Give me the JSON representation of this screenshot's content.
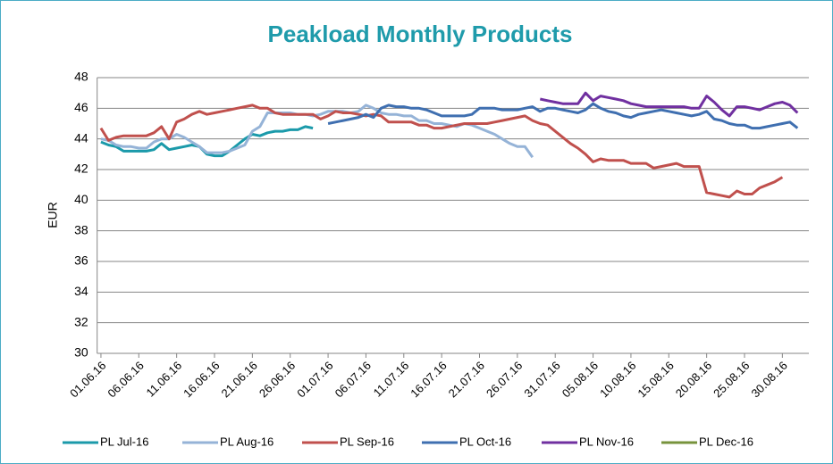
{
  "chart_data": {
    "type": "line",
    "title": "Peakload Monthly Products",
    "y_label": "EUR",
    "categories": [
      "01.06.16",
      null,
      null,
      null,
      null,
      "06.06.16",
      null,
      null,
      null,
      null,
      "11.06.16",
      null,
      null,
      null,
      null,
      "16.06.16",
      null,
      null,
      null,
      null,
      "21.06.16",
      null,
      null,
      null,
      null,
      "26.06.16",
      null,
      null,
      null,
      null,
      "01.07.16",
      null,
      null,
      null,
      null,
      "06.07.16",
      null,
      null,
      null,
      null,
      "11.07.16",
      null,
      null,
      null,
      null,
      "16.07.16",
      null,
      null,
      null,
      null,
      "21.07.16",
      null,
      null,
      null,
      null,
      "26.07.16",
      null,
      null,
      null,
      null,
      "31.07.16",
      null,
      null,
      null,
      null,
      "05.08.16",
      null,
      null,
      null,
      null,
      "10.08.16",
      null,
      null,
      null,
      null,
      "15.08.16",
      null,
      null,
      null,
      null,
      "20.08.16",
      null,
      null,
      null,
      null,
      "25.08.16",
      null,
      null,
      null,
      null,
      "30.08.16",
      null,
      null,
      null
    ],
    "ylim": [
      30,
      48
    ],
    "yticks": [
      30,
      32,
      34,
      36,
      38,
      40,
      42,
      44,
      46,
      48
    ],
    "grid": true,
    "legend": "bottom",
    "series": [
      {
        "name": "PL Jul-16",
        "color": "#1b9aaa",
        "values": [
          43.8,
          43.6,
          43.5,
          43.2,
          43.2,
          43.2,
          43.2,
          43.3,
          43.7,
          43.3,
          43.4,
          43.5,
          43.6,
          43.5,
          43.0,
          42.9,
          42.9,
          43.2,
          43.6,
          44.0,
          44.3,
          44.2,
          44.4,
          44.5,
          44.5,
          44.6,
          44.6,
          44.8,
          44.7,
          null,
          null,
          null,
          null,
          null,
          null,
          null,
          null,
          null,
          null,
          null,
          null,
          null,
          null,
          null,
          null,
          null,
          null,
          null,
          null,
          null,
          null,
          null,
          null,
          null,
          null,
          null,
          null,
          null,
          null,
          null,
          null,
          null,
          null,
          null,
          null,
          null,
          null,
          null,
          null,
          null,
          null,
          null,
          null,
          null,
          null,
          null,
          null,
          null,
          null,
          null,
          null,
          null,
          null,
          null,
          null,
          null,
          null,
          null,
          null,
          null,
          null,
          null,
          null,
          null
        ]
      },
      {
        "name": "PL Aug-16",
        "color": "#95b3d7",
        "values": [
          44.0,
          43.9,
          43.6,
          43.5,
          43.5,
          43.4,
          43.4,
          43.8,
          44.0,
          44.0,
          44.3,
          44.1,
          43.8,
          43.5,
          43.1,
          43.1,
          43.1,
          43.2,
          43.4,
          43.6,
          44.5,
          44.8,
          45.7,
          45.7,
          45.7,
          45.7,
          45.6,
          45.6,
          45.5,
          45.6,
          45.8,
          45.8,
          45.8,
          45.7,
          45.8,
          46.2,
          46.0,
          45.7,
          45.6,
          45.6,
          45.5,
          45.5,
          45.2,
          45.2,
          45.0,
          45.0,
          44.9,
          44.8,
          45.0,
          44.9,
          44.7,
          44.5,
          44.3,
          44.0,
          43.7,
          43.5,
          43.5,
          42.8,
          null,
          null,
          null,
          null,
          null,
          null,
          null,
          null,
          null,
          null,
          null,
          null,
          null,
          null,
          null,
          null,
          null,
          null,
          null,
          null,
          null,
          null,
          null,
          null,
          null,
          null,
          null,
          null,
          null,
          null,
          null,
          null,
          null,
          null,
          null,
          null
        ]
      },
      {
        "name": "PL Sep-16",
        "color": "#c0504d",
        "values": [
          44.7,
          43.9,
          44.1,
          44.2,
          44.2,
          44.2,
          44.2,
          44.4,
          44.8,
          44.0,
          45.1,
          45.3,
          45.6,
          45.8,
          45.6,
          45.7,
          45.8,
          45.9,
          46.0,
          46.1,
          46.2,
          46.0,
          46.0,
          45.7,
          45.6,
          45.6,
          45.6,
          45.6,
          45.6,
          45.3,
          45.5,
          45.8,
          45.7,
          45.7,
          45.6,
          45.5,
          45.6,
          45.5,
          45.1,
          45.1,
          45.1,
          45.1,
          44.9,
          44.9,
          44.7,
          44.7,
          44.8,
          44.9,
          45.0,
          45.0,
          45.0,
          45.0,
          45.1,
          45.2,
          45.3,
          45.4,
          45.5,
          45.2,
          45.0,
          44.9,
          44.5,
          44.1,
          43.7,
          43.4,
          43.0,
          42.5,
          42.7,
          42.6,
          42.6,
          42.6,
          42.4,
          42.4,
          42.4,
          42.1,
          42.2,
          42.3,
          42.4,
          42.2,
          42.2,
          42.2,
          40.5,
          40.4,
          40.3,
          40.2,
          40.6,
          40.4,
          40.4,
          40.8,
          41.0,
          41.2,
          41.5,
          null,
          null,
          null
        ]
      },
      {
        "name": "PL Oct-16",
        "color": "#3f6fb0",
        "values": [
          null,
          null,
          null,
          null,
          null,
          null,
          null,
          null,
          null,
          null,
          null,
          null,
          null,
          null,
          null,
          null,
          null,
          null,
          null,
          null,
          null,
          null,
          null,
          null,
          null,
          null,
          null,
          null,
          null,
          null,
          45.0,
          45.1,
          45.2,
          45.3,
          45.4,
          45.6,
          45.4,
          46.0,
          46.2,
          46.1,
          46.1,
          46.0,
          46.0,
          45.9,
          45.7,
          45.5,
          45.5,
          45.5,
          45.5,
          45.6,
          46.0,
          46.0,
          46.0,
          45.9,
          45.9,
          45.9,
          46.0,
          46.1,
          45.8,
          46.0,
          46.0,
          45.9,
          45.8,
          45.7,
          45.9,
          46.3,
          46.0,
          45.8,
          45.7,
          45.5,
          45.4,
          45.6,
          45.7,
          45.8,
          45.9,
          45.8,
          45.7,
          45.6,
          45.5,
          45.6,
          45.8,
          45.3,
          45.2,
          45.0,
          44.9,
          44.9,
          44.7,
          44.7,
          44.8,
          44.9,
          45.0,
          45.1,
          44.7,
          null
        ]
      },
      {
        "name": "PL Nov-16",
        "color": "#7030a0",
        "values": [
          null,
          null,
          null,
          null,
          null,
          null,
          null,
          null,
          null,
          null,
          null,
          null,
          null,
          null,
          null,
          null,
          null,
          null,
          null,
          null,
          null,
          null,
          null,
          null,
          null,
          null,
          null,
          null,
          null,
          null,
          null,
          null,
          null,
          null,
          null,
          null,
          null,
          null,
          null,
          null,
          null,
          null,
          null,
          null,
          null,
          null,
          null,
          null,
          null,
          null,
          null,
          null,
          null,
          null,
          null,
          null,
          null,
          null,
          46.6,
          46.5,
          46.4,
          46.3,
          46.3,
          46.3,
          47.0,
          46.5,
          46.8,
          46.7,
          46.6,
          46.5,
          46.3,
          46.2,
          46.1,
          46.1,
          46.1,
          46.1,
          46.1,
          46.1,
          46.0,
          46.0,
          46.8,
          46.4,
          45.9,
          45.5,
          46.1,
          46.1,
          46.0,
          45.9,
          46.1,
          46.3,
          46.4,
          46.2,
          45.7,
          null
        ]
      },
      {
        "name": "PL Dec-16",
        "color": "#77933c",
        "values": [
          null,
          null,
          null,
          null,
          null,
          null,
          null,
          null,
          null,
          null,
          null,
          null,
          null,
          null,
          null,
          null,
          null,
          null,
          null,
          null,
          null,
          null,
          null,
          null,
          null,
          null,
          null,
          null,
          null,
          null,
          null,
          null,
          null,
          null,
          null,
          null,
          null,
          null,
          null,
          null,
          null,
          null,
          null,
          null,
          null,
          null,
          null,
          null,
          null,
          null,
          null,
          null,
          null,
          null,
          null,
          null,
          null,
          null,
          null,
          null,
          null,
          null,
          null,
          null,
          null,
          null,
          null,
          null,
          null,
          null,
          null,
          null,
          null,
          null,
          null,
          null,
          null,
          null,
          null,
          null,
          null,
          null,
          null,
          null,
          null,
          null,
          null,
          null,
          null,
          null,
          null,
          null,
          null,
          null
        ]
      }
    ]
  }
}
